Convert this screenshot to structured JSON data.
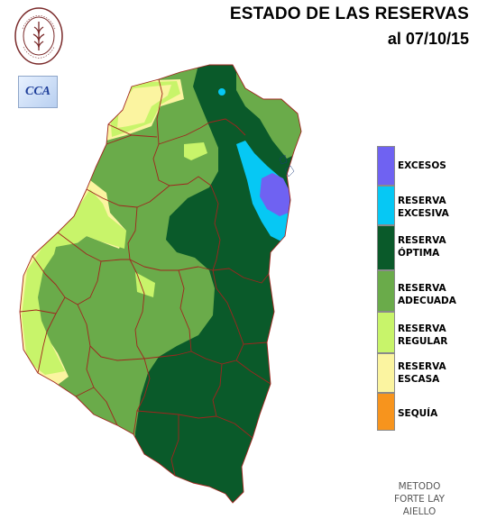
{
  "header": {
    "title": "ESTADO DE LAS RESERVAS",
    "date": "al 07/10/15"
  },
  "logos": {
    "seal_text": "BOLSA DE CEREALES DE ENTRE RIOS",
    "cca_text": "CCA"
  },
  "legend": {
    "items": [
      {
        "label_line1": "EXCESOS",
        "label_line2": "",
        "color": "#6f62f2"
      },
      {
        "label_line1": "RESERVA",
        "label_line2": "EXCESIVA",
        "color": "#06c8f4"
      },
      {
        "label_line1": "RESERVA",
        "label_line2": "ÓPTIMA",
        "color": "#0a5a2a"
      },
      {
        "label_line1": "RESERVA",
        "label_line2": "ADECUADA",
        "color": "#6aab4a"
      },
      {
        "label_line1": "RESERVA",
        "label_line2": "REGULAR",
        "color": "#c8f46a"
      },
      {
        "label_line1": "RESERVA",
        "label_line2": "ESCASA",
        "color": "#fbf4a0"
      },
      {
        "label_line1": "SEQUÍA",
        "label_line2": "",
        "color": "#f7941d"
      }
    ]
  },
  "method": {
    "line1": "METODO",
    "line2": "FORTE LAY",
    "line3": "AIELLO"
  },
  "map_colors": {
    "border": "#a0251e",
    "excesos": "#6f62f2",
    "excesiva": "#06c8f4",
    "optima": "#0a5a2a",
    "adecuada": "#6aab4a",
    "regular": "#c8f46a",
    "escasa": "#fbf4a0"
  }
}
